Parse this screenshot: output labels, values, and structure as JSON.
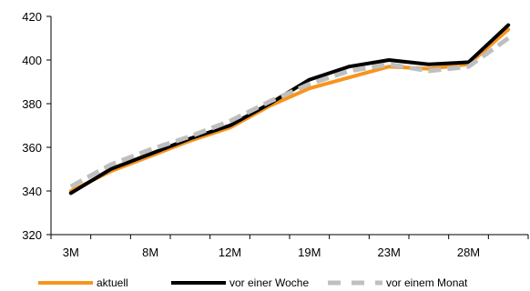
{
  "chart_data": {
    "type": "line",
    "categories": [
      "3M",
      "",
      "8M",
      "",
      "12M",
      "",
      "19M",
      "",
      "23M",
      "",
      "28M",
      ""
    ],
    "ylim": [
      320,
      420
    ],
    "yticks": [
      320,
      340,
      360,
      380,
      400,
      420
    ],
    "grid": false,
    "legend_position": "bottom",
    "series": [
      {
        "name": "aktuell",
        "color": "#F7941D",
        "dash": "solid",
        "values": [
          340,
          349,
          356,
          363,
          369,
          379,
          387,
          392,
          397,
          396,
          398,
          414
        ]
      },
      {
        "name": "vor einer Woche",
        "color": "#000000",
        "dash": "solid",
        "values": [
          339,
          350,
          357,
          364,
          370,
          380,
          391,
          397,
          400,
          398,
          399,
          416
        ]
      },
      {
        "name": "vor einem Monat",
        "color": "#BFBFBF",
        "dash": "dashed",
        "values": [
          342,
          352,
          359,
          365,
          372,
          381,
          389,
          395,
          398,
          395,
          397,
          410
        ]
      }
    ]
  }
}
